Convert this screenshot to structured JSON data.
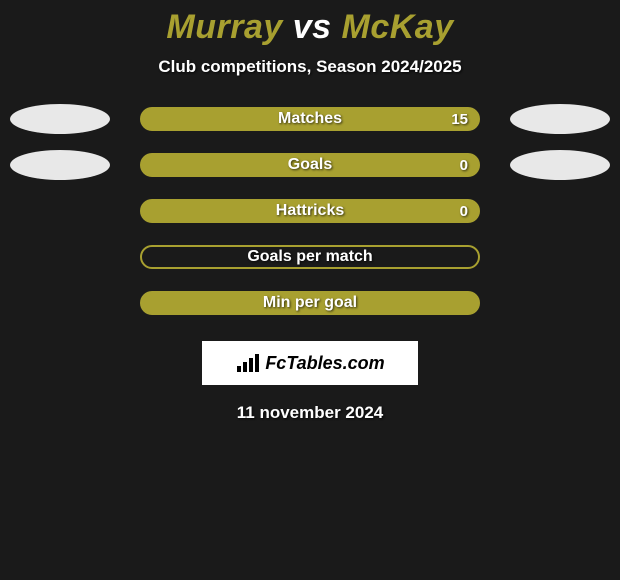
{
  "title": {
    "left": "Murray",
    "vs": "vs",
    "right": "McKay",
    "left_color": "#a8a030",
    "vs_color": "#ffffff",
    "right_color": "#a8a030"
  },
  "subtitle": "Club competitions, Season 2024/2025",
  "stats": [
    {
      "label": "Matches",
      "right_value": "15",
      "bar_fill": "#a8a030",
      "bar_border": "#a8a030",
      "left_ellipse": "#e8e8e8",
      "right_ellipse": "#e8e8e8"
    },
    {
      "label": "Goals",
      "right_value": "0",
      "bar_fill": "#a8a030",
      "bar_border": "#a8a030",
      "left_ellipse": "#e8e8e8",
      "right_ellipse": "#e8e8e8"
    },
    {
      "label": "Hattricks",
      "right_value": "0",
      "bar_fill": "#a8a030",
      "bar_border": "#a8a030",
      "left_ellipse": null,
      "right_ellipse": null
    },
    {
      "label": "Goals per match",
      "right_value": "",
      "bar_fill": "transparent",
      "bar_border": "#a8a030",
      "left_ellipse": null,
      "right_ellipse": null
    },
    {
      "label": "Min per goal",
      "right_value": "",
      "bar_fill": "#a8a030",
      "bar_border": "#a8a030",
      "left_ellipse": null,
      "right_ellipse": null
    }
  ],
  "logo": {
    "text": "FcTables.com"
  },
  "date": "11 november 2024",
  "colors": {
    "background": "#1a1a1a",
    "text": "#ffffff"
  }
}
